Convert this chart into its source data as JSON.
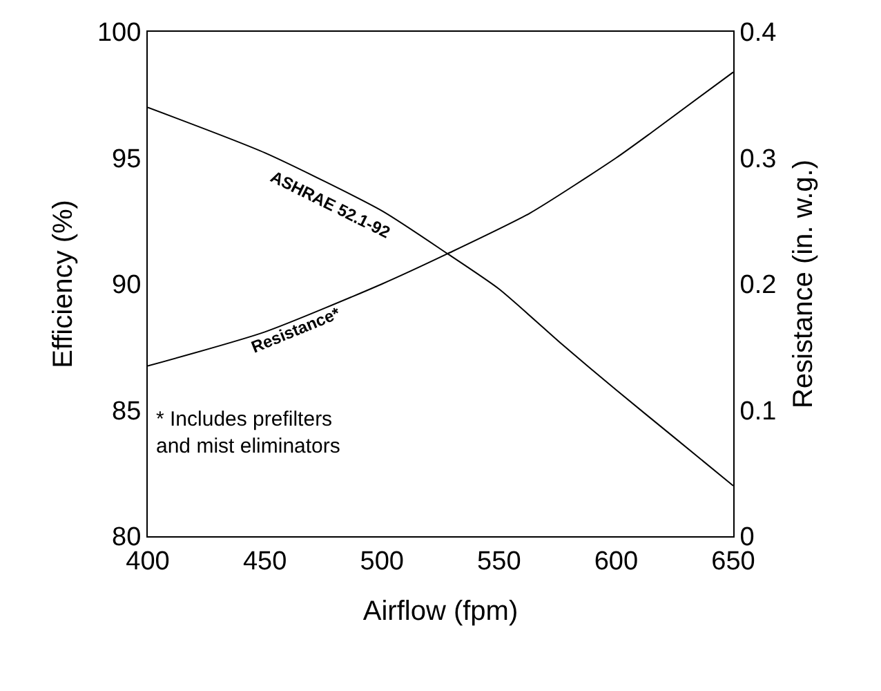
{
  "chart_data": {
    "type": "line",
    "xlabel": "Airflow (fpm)",
    "ylabel": "Efficiency (%)",
    "y2label": "Resistance (in. w.g.)",
    "x": [
      400,
      450,
      500,
      528,
      550,
      577,
      600,
      625,
      650
    ],
    "series": [
      {
        "name": "ASHRAE 52.1-92",
        "color": "#000000",
        "values": [
          97.0,
          95.2,
          92.9,
          91.2,
          89.8,
          87.6,
          85.8,
          83.9,
          82.0
        ]
      },
      {
        "name": "Resistance*",
        "color": "#000000",
        "axis": "y2",
        "x": [
          400,
          450,
          500,
          528,
          563,
          600,
          615,
          650
        ],
        "values": [
          0.135,
          0.162,
          0.2,
          0.224,
          0.256,
          0.3,
          0.32,
          0.368
        ]
      }
    ],
    "xlim": [
      400,
      650
    ],
    "xticks": [
      400,
      450,
      500,
      550,
      600,
      650
    ],
    "ylim": [
      80,
      100
    ],
    "yticks": [
      80,
      85,
      90,
      95,
      100
    ],
    "y2lim": [
      0,
      0.4
    ],
    "y2ticks": [
      0,
      0.1,
      0.2,
      0.3,
      0.4
    ],
    "annotations": [
      "* Includes prefilters\nand mist eliminators"
    ],
    "grid": false,
    "legend": false,
    "marker": "none",
    "line_style": "solid"
  }
}
